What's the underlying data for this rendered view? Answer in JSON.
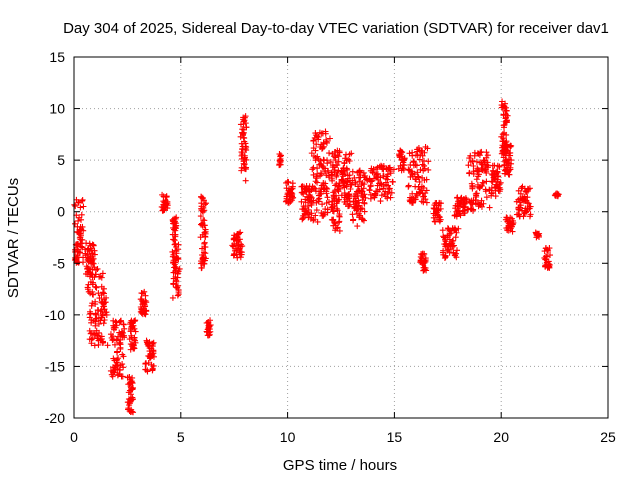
{
  "chart_data": {
    "type": "scatter",
    "title": "Day 304 of 2025, Sidereal Day-to-day VTEC variation (SDTVAR) for receiver dav1",
    "xlabel": "GPS time / hours",
    "ylabel": "SDTVAR / TECUs",
    "xlim": [
      0,
      25
    ],
    "ylim": [
      -20,
      15
    ],
    "xticks": [
      "0",
      "5",
      "10",
      "15",
      "20",
      "25"
    ],
    "yticks": [
      "-20",
      "-15",
      "-10",
      "-5",
      "0",
      "5",
      "10",
      "15"
    ],
    "grid": true,
    "marker": "plus",
    "color": "#ff0000",
    "clusters": [
      {
        "x": [
          0.0,
          0.45
        ],
        "y": [
          -5.0,
          1.2
        ]
      },
      {
        "x": [
          0.5,
          1.0
        ],
        "y": [
          -6.5,
          -3.0
        ]
      },
      {
        "x": [
          0.6,
          1.6
        ],
        "y": [
          -13.0,
          -5.5
        ]
      },
      {
        "x": [
          1.7,
          2.4
        ],
        "y": [
          -16.0,
          -10.5
        ]
      },
      {
        "x": [
          2.5,
          2.8
        ],
        "y": [
          -19.5,
          -16.0
        ]
      },
      {
        "x": [
          2.6,
          2.9
        ],
        "y": [
          -13.5,
          -10.5
        ]
      },
      {
        "x": [
          3.1,
          3.4
        ],
        "y": [
          -10.0,
          -7.5
        ]
      },
      {
        "x": [
          3.3,
          3.8
        ],
        "y": [
          -15.5,
          -12.5
        ]
      },
      {
        "x": [
          4.1,
          4.4
        ],
        "y": [
          0.0,
          1.8
        ]
      },
      {
        "x": [
          4.6,
          4.95
        ],
        "y": [
          -8.5,
          -3.0
        ]
      },
      {
        "x": [
          4.6,
          4.8
        ],
        "y": [
          -3.0,
          -0.5
        ]
      },
      {
        "x": [
          5.9,
          6.2
        ],
        "y": [
          -5.5,
          1.5
        ]
      },
      {
        "x": [
          6.2,
          6.4
        ],
        "y": [
          -12.0,
          -10.5
        ]
      },
      {
        "x": [
          7.4,
          7.9
        ],
        "y": [
          -4.5,
          -2.0
        ]
      },
      {
        "x": [
          7.8,
          8.1
        ],
        "y": [
          3.0,
          9.3
        ]
      },
      {
        "x": [
          9.6,
          9.7
        ],
        "y": [
          4.5,
          5.8
        ]
      },
      {
        "x": [
          9.9,
          10.3
        ],
        "y": [
          0.8,
          3.0
        ]
      },
      {
        "x": [
          10.6,
          11.2
        ],
        "y": [
          -0.8,
          2.5
        ]
      },
      {
        "x": [
          11.1,
          12.0
        ],
        "y": [
          -1.0,
          8.0
        ]
      },
      {
        "x": [
          12.0,
          12.5
        ],
        "y": [
          -2.0,
          6.0
        ]
      },
      {
        "x": [
          12.5,
          13.0
        ],
        "y": [
          0.5,
          5.8
        ]
      },
      {
        "x": [
          13.0,
          13.7
        ],
        "y": [
          -1.5,
          4.0
        ]
      },
      {
        "x": [
          13.7,
          15.0
        ],
        "y": [
          1.0,
          4.5
        ]
      },
      {
        "x": [
          15.2,
          15.5
        ],
        "y": [
          4.0,
          6.0
        ]
      },
      {
        "x": [
          15.6,
          16.6
        ],
        "y": [
          0.8,
          6.3
        ]
      },
      {
        "x": [
          16.2,
          16.5
        ],
        "y": [
          -5.8,
          -4.0
        ]
      },
      {
        "x": [
          16.8,
          17.2
        ],
        "y": [
          -1.0,
          1.0
        ]
      },
      {
        "x": [
          17.2,
          18.0
        ],
        "y": [
          -4.5,
          -1.5
        ]
      },
      {
        "x": [
          17.8,
          18.4
        ],
        "y": [
          -0.5,
          1.5
        ]
      },
      {
        "x": [
          18.4,
          19.5
        ],
        "y": [
          0.0,
          5.8
        ]
      },
      {
        "x": [
          19.5,
          20.0
        ],
        "y": [
          1.5,
          4.5
        ]
      },
      {
        "x": [
          20.0,
          20.3
        ],
        "y": [
          5.0,
          10.8
        ]
      },
      {
        "x": [
          20.1,
          20.5
        ],
        "y": [
          3.5,
          6.5
        ]
      },
      {
        "x": [
          20.2,
          20.6
        ],
        "y": [
          -2.0,
          -0.5
        ]
      },
      {
        "x": [
          20.7,
          21.4
        ],
        "y": [
          -0.5,
          2.5
        ]
      },
      {
        "x": [
          21.6,
          21.8
        ],
        "y": [
          -2.5,
          -2.0
        ]
      },
      {
        "x": [
          22.0,
          22.3
        ],
        "y": [
          -5.5,
          -3.5
        ]
      },
      {
        "x": [
          22.5,
          22.7
        ],
        "y": [
          1.5,
          1.8
        ]
      }
    ]
  }
}
